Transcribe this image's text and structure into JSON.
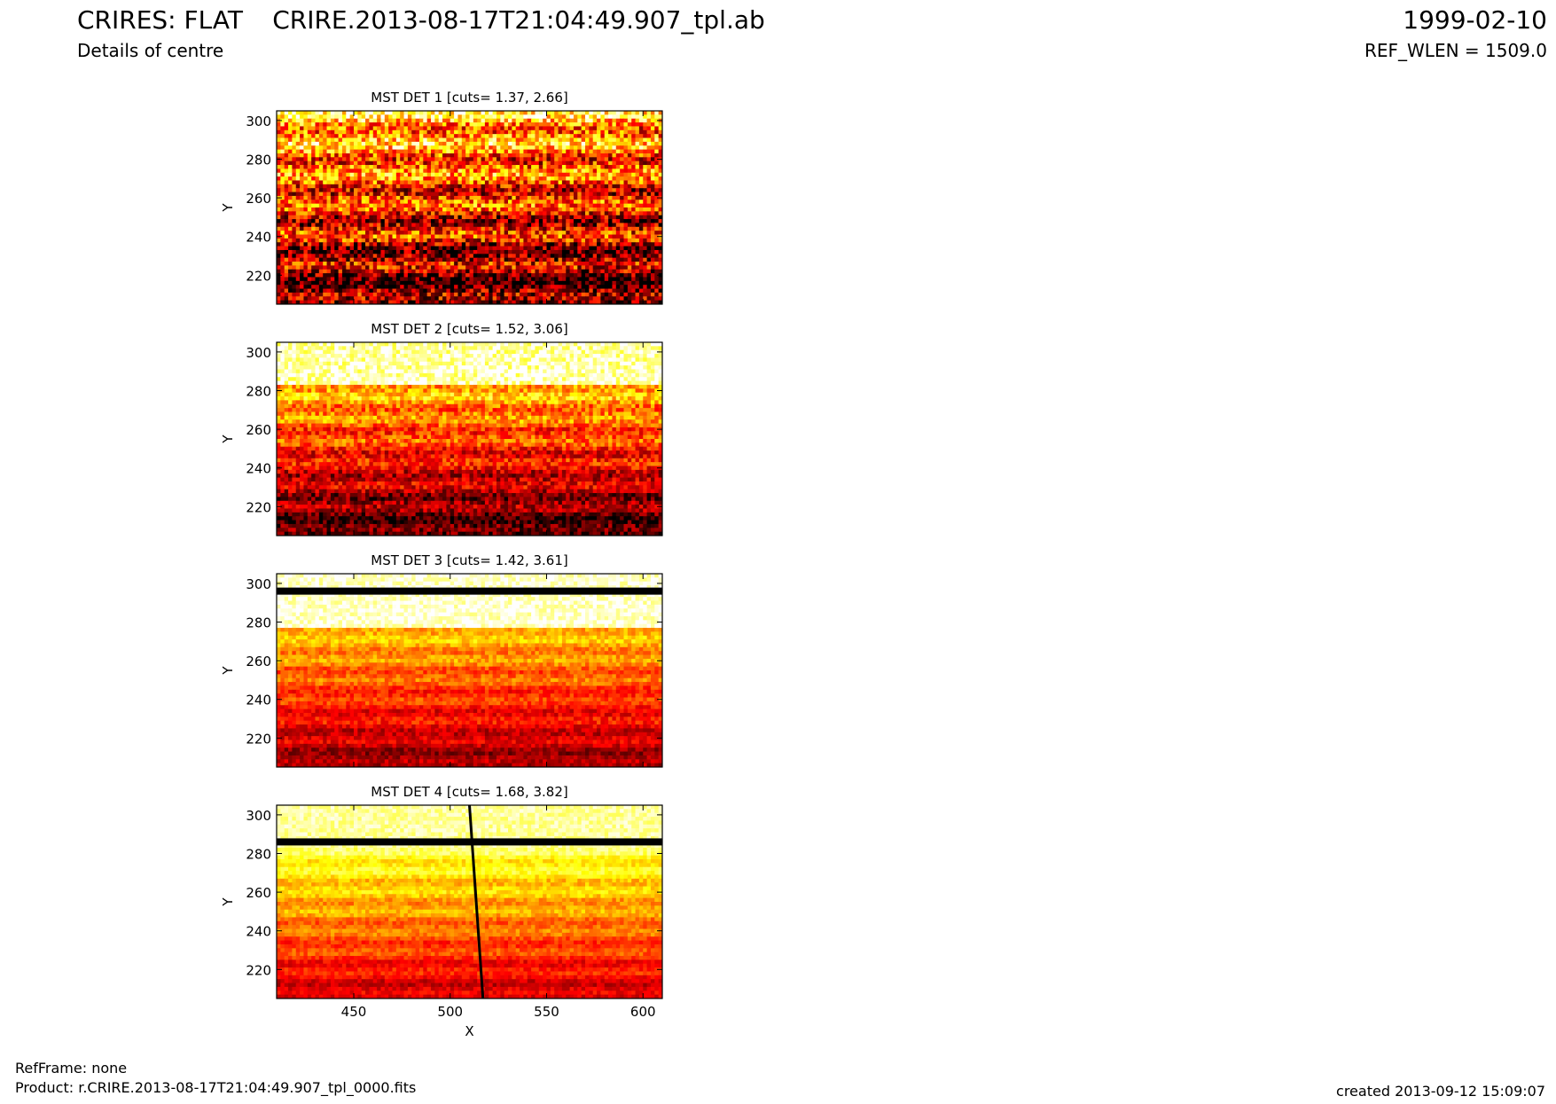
{
  "header": {
    "title_left": "CRIRES: FLAT",
    "subtitle_left": "Details of centre",
    "title_center": "CRIRE.2013-08-17T21:04:49.907_tpl.ab",
    "title_right": "1999-02-10",
    "subtitle_right": "REF_WLEN = 1509.0"
  },
  "footer": {
    "refframe": "RefFrame: none",
    "product": "Product: r.CRIRE.2013-08-17T21:04:49.907_tpl_0000.fits",
    "created": "created 2013-09-12 15:09:07"
  },
  "colors": {
    "colormap": "hot",
    "axis": "#000000",
    "background": "#ffffff"
  },
  "chart_data": [
    {
      "type": "heatmap",
      "title": "MST DET 1 [cuts= 1.37, 2.66]",
      "xlabel": "",
      "ylabel": "Y",
      "xlim": [
        410,
        610
      ],
      "ylim": [
        205,
        305
      ],
      "xticks": [],
      "yticks": [
        220,
        240,
        260,
        280,
        300
      ],
      "cuts": [
        1.37,
        2.66
      ],
      "colormap": "hot"
    },
    {
      "type": "heatmap",
      "title": "MST DET 2 [cuts= 1.52, 3.06]",
      "xlabel": "",
      "ylabel": "Y",
      "xlim": [
        410,
        610
      ],
      "ylim": [
        205,
        305
      ],
      "xticks": [],
      "yticks": [
        220,
        240,
        260,
        280,
        300
      ],
      "cuts": [
        1.52,
        3.06
      ],
      "colormap": "hot"
    },
    {
      "type": "heatmap",
      "title": "MST DET 3 [cuts= 1.42, 3.61]",
      "xlabel": "",
      "ylabel": "Y",
      "xlim": [
        410,
        610
      ],
      "ylim": [
        205,
        305
      ],
      "xticks": [],
      "yticks": [
        220,
        240,
        260,
        280,
        300
      ],
      "cuts": [
        1.42,
        3.61
      ],
      "colormap": "hot",
      "features": [
        {
          "kind": "bad-row",
          "y": 296
        }
      ]
    },
    {
      "type": "heatmap",
      "title": "MST DET 4 [cuts= 1.68, 3.82]",
      "xlabel": "X",
      "ylabel": "Y",
      "xlim": [
        410,
        610
      ],
      "ylim": [
        205,
        305
      ],
      "xticks": [
        450,
        500,
        550,
        600
      ],
      "yticks": [
        220,
        240,
        260,
        280,
        300
      ],
      "cuts": [
        1.68,
        3.82
      ],
      "colormap": "hot",
      "features": [
        {
          "kind": "bad-row",
          "y": 286
        },
        {
          "kind": "bad-column",
          "x_top": 510,
          "x_bottom": 517
        }
      ]
    }
  ]
}
